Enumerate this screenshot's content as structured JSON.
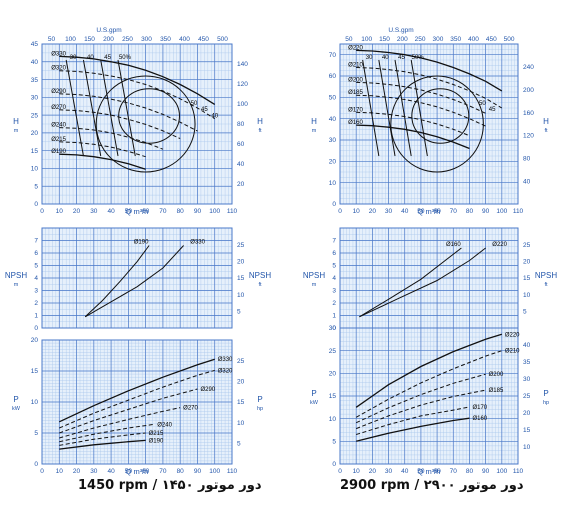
{
  "colors": {
    "grid_bg": "#e6f0fb",
    "grid_major": "#4a78c8",
    "grid_minor": "#a9c6ec",
    "axis_text": "#2255aa",
    "curve": "#111111"
  },
  "captions": {
    "left": "1450 rpm / ۱۴۵۰ دور موتور",
    "right": "2900 rpm / ۲۹۰۰ دور موتور"
  },
  "chart_data": [
    {
      "id": "L_H",
      "type": "line",
      "top_axis_label": "U.S.gpm",
      "top_ticks": [
        "50",
        "100",
        "150",
        "200",
        "250",
        "300",
        "350",
        "400",
        "450",
        "500"
      ],
      "xlabel": "Q m³/h",
      "xlim": [
        0,
        110
      ],
      "xticks": [
        0,
        10,
        20,
        30,
        40,
        50,
        60,
        70,
        80,
        90,
        100,
        110
      ],
      "ylabel": "H m",
      "ylim": [
        0,
        45
      ],
      "yticks": [
        0,
        5,
        10,
        15,
        20,
        25,
        30,
        35,
        40,
        45
      ],
      "ylabel_right": "H ft",
      "yticks_right": [
        "20",
        "40",
        "60",
        "80",
        "100",
        "120",
        "140"
      ],
      "series": [
        {
          "name": "Ø330",
          "style": "solid",
          "x": [
            10,
            20,
            30,
            40,
            50,
            60,
            70,
            80,
            90,
            100
          ],
          "y": [
            41.5,
            41.3,
            40.8,
            40,
            39,
            37.6,
            35.8,
            33.6,
            31,
            28
          ]
        },
        {
          "name": "Ø320",
          "style": "dashed",
          "x": [
            10,
            20,
            30,
            40,
            50,
            60,
            70,
            80,
            90,
            100
          ],
          "y": [
            37.5,
            37.3,
            36.8,
            36,
            35,
            33.6,
            31.8,
            29.6,
            27,
            24
          ]
        },
        {
          "name": "Ø290",
          "style": "dashed",
          "x": [
            10,
            20,
            30,
            40,
            50,
            60,
            70,
            80,
            90
          ],
          "y": [
            31,
            30.8,
            30.3,
            29.5,
            28.4,
            27,
            25.2,
            23,
            20.5
          ]
        },
        {
          "name": "Ø270",
          "style": "dashed",
          "x": [
            10,
            20,
            30,
            40,
            50,
            60,
            70,
            80
          ],
          "y": [
            26.5,
            26.3,
            25.8,
            25,
            23.8,
            22.4,
            20.6,
            18.4
          ]
        },
        {
          "name": "Ø240",
          "style": "dashed",
          "x": [
            10,
            20,
            30,
            40,
            50,
            60,
            70
          ],
          "y": [
            21.5,
            21.3,
            20.8,
            20,
            18.8,
            17.3,
            15.4
          ]
        },
        {
          "name": "Ø215",
          "style": "dashed",
          "x": [
            10,
            20,
            30,
            40,
            50,
            60
          ],
          "y": [
            17.5,
            17.3,
            16.8,
            16,
            14.8,
            13.3
          ]
        },
        {
          "name": "Ø190",
          "style": "solid",
          "x": [
            10,
            20,
            30,
            40,
            50,
            60
          ],
          "y": [
            14,
            13.8,
            13.3,
            12.5,
            11.3,
            9.8
          ]
        }
      ],
      "efficiency_labels": [
        "30",
        "40",
        "45",
        "50%",
        "50",
        "45",
        "40"
      ]
    },
    {
      "id": "L_N",
      "type": "line",
      "xlim": [
        0,
        110
      ],
      "ylim": [
        0,
        8
      ],
      "yticks": [
        0,
        1,
        2,
        3,
        4,
        5,
        6,
        7
      ],
      "ylabel": "NPSH m",
      "ylabel_right": "NPSH ft",
      "yticks_right": [
        "5",
        "10",
        "15",
        "20",
        "25"
      ],
      "series": [
        {
          "name": "Ø190",
          "x": [
            25,
            35,
            45,
            55,
            62
          ],
          "y": [
            0.9,
            2.2,
            3.7,
            5.3,
            6.6
          ]
        },
        {
          "name": "Ø330",
          "x": [
            25,
            40,
            55,
            70,
            82
          ],
          "y": [
            0.9,
            2.1,
            3.3,
            4.8,
            6.6
          ]
        }
      ]
    },
    {
      "id": "L_P",
      "type": "line",
      "xlabel": "Q m³/h",
      "xlim": [
        0,
        110
      ],
      "xticks": [
        0,
        10,
        20,
        30,
        40,
        50,
        60,
        70,
        80,
        90,
        100,
        110
      ],
      "ylim": [
        0,
        20
      ],
      "yticks": [
        0,
        5,
        10,
        15,
        20
      ],
      "ylabel": "P kW",
      "ylabel_right": "P hp",
      "yticks_right": [
        "5",
        "10",
        "15",
        "20",
        "25"
      ],
      "series": [
        {
          "name": "Ø330",
          "style": "solid",
          "x": [
            10,
            30,
            50,
            70,
            90,
            100
          ],
          "y": [
            6.8,
            9.4,
            11.8,
            14,
            16,
            16.9
          ]
        },
        {
          "name": "Ø320",
          "style": "dashed",
          "x": [
            10,
            30,
            50,
            70,
            90,
            100
          ],
          "y": [
            5.8,
            8.2,
            10.3,
            12.4,
            14.3,
            15.1
          ]
        },
        {
          "name": "Ø290",
          "style": "dashed",
          "x": [
            10,
            30,
            50,
            70,
            90
          ],
          "y": [
            5,
            7,
            8.8,
            10.6,
            12.1
          ]
        },
        {
          "name": "Ø270",
          "style": "dashed",
          "x": [
            10,
            30,
            50,
            70,
            80
          ],
          "y": [
            4.2,
            5.8,
            7.2,
            8.5,
            9.1
          ]
        },
        {
          "name": "Ø240",
          "style": "dashed",
          "x": [
            10,
            30,
            50,
            65
          ],
          "y": [
            3.6,
            4.8,
            5.8,
            6.4
          ]
        },
        {
          "name": "Ø215",
          "style": "dashed",
          "x": [
            10,
            30,
            50,
            60
          ],
          "y": [
            3,
            4,
            4.7,
            5
          ]
        },
        {
          "name": "Ø190",
          "style": "solid",
          "x": [
            10,
            30,
            50,
            60
          ],
          "y": [
            2.4,
            3.1,
            3.6,
            3.8
          ]
        }
      ]
    },
    {
      "id": "R_H",
      "type": "line",
      "top_axis_label": "U.S.gpm",
      "top_ticks": [
        "50",
        "100",
        "150",
        "200",
        "250",
        "300",
        "350",
        "400",
        "450",
        "500"
      ],
      "xlabel": "Q m³/h",
      "xlim": [
        0,
        110
      ],
      "xticks": [
        0,
        10,
        20,
        30,
        40,
        50,
        60,
        70,
        80,
        90,
        100,
        110
      ],
      "ylabel": "H m",
      "ylim": [
        0,
        75
      ],
      "yticks": [
        0,
        10,
        20,
        30,
        40,
        50,
        60,
        70
      ],
      "ylabel_right": "H ft",
      "yticks_right": [
        "40",
        "80",
        "120",
        "160",
        "200",
        "240"
      ],
      "series": [
        {
          "name": "Ø220",
          "style": "solid",
          "x": [
            10,
            20,
            30,
            40,
            50,
            60,
            70,
            80,
            90,
            100
          ],
          "y": [
            72,
            71.7,
            71,
            70,
            68.5,
            66.5,
            64,
            61,
            57.5,
            53
          ]
        },
        {
          "name": "Ø210",
          "style": "dashed",
          "x": [
            10,
            20,
            30,
            40,
            50,
            60,
            70,
            80,
            90,
            100
          ],
          "y": [
            64,
            63.7,
            63,
            62,
            60.5,
            58.5,
            56,
            53,
            49.5,
            45
          ]
        },
        {
          "name": "Ø200",
          "style": "dashed",
          "x": [
            10,
            20,
            30,
            40,
            50,
            60,
            70,
            80,
            90
          ],
          "y": [
            57,
            56.7,
            56,
            55,
            53.5,
            51.5,
            49,
            46,
            42.5
          ]
        },
        {
          "name": "Ø185",
          "style": "dashed",
          "x": [
            10,
            20,
            30,
            40,
            50,
            60,
            70,
            80,
            90
          ],
          "y": [
            51,
            50.7,
            50,
            49,
            47.5,
            45.5,
            43,
            40,
            36.5
          ]
        },
        {
          "name": "Ø170",
          "style": "dashed",
          "x": [
            10,
            20,
            30,
            40,
            50,
            60,
            70,
            80
          ],
          "y": [
            43,
            42.7,
            42,
            41,
            39.5,
            37.5,
            35,
            32
          ]
        },
        {
          "name": "Ø160",
          "style": "solid",
          "x": [
            10,
            20,
            30,
            40,
            50,
            60,
            70,
            80
          ],
          "y": [
            37,
            36.7,
            36,
            35,
            33.5,
            31.5,
            29,
            26
          ]
        }
      ],
      "efficiency_labels": [
        "30",
        "40",
        "45",
        "50%",
        "50",
        "45"
      ]
    },
    {
      "id": "R_N",
      "type": "line",
      "xlim": [
        0,
        110
      ],
      "ylim": [
        0,
        8
      ],
      "yticks": [
        0,
        1,
        2,
        3,
        4,
        5,
        6,
        7
      ],
      "ylabel": "NPSH m",
      "ylabel_right": "NPSH ft",
      "yticks_right": [
        "5",
        "10",
        "15",
        "20",
        "25"
      ],
      "series": [
        {
          "name": "Ø160",
          "x": [
            12,
            30,
            50,
            65,
            75
          ],
          "y": [
            0.9,
            2.3,
            3.9,
            5.4,
            6.4
          ]
        },
        {
          "name": "Ø220",
          "x": [
            12,
            35,
            60,
            80,
            90
          ],
          "y": [
            0.9,
            2.3,
            3.8,
            5.4,
            6.4
          ]
        }
      ]
    },
    {
      "id": "R_P",
      "type": "line",
      "xlabel": "Q m³/h",
      "xlim": [
        0,
        110
      ],
      "xticks": [
        0,
        10,
        20,
        30,
        40,
        50,
        60,
        70,
        80,
        90,
        100,
        110
      ],
      "ylim": [
        0,
        30
      ],
      "yticks": [
        0,
        5,
        10,
        15,
        20,
        25,
        30
      ],
      "ylabel": "P kW",
      "ylabel_right": "P hp",
      "yticks_right": [
        "10",
        "15",
        "20",
        "25",
        "30",
        "35",
        "40"
      ],
      "series": [
        {
          "name": "Ø220",
          "style": "solid",
          "x": [
            10,
            30,
            50,
            70,
            90,
            100
          ],
          "y": [
            12.5,
            17.5,
            21.5,
            24.8,
            27.5,
            28.6
          ]
        },
        {
          "name": "Ø210",
          "style": "dashed",
          "x": [
            10,
            30,
            50,
            70,
            90,
            100
          ],
          "y": [
            10.3,
            14.3,
            17.9,
            21,
            23.8,
            25
          ]
        },
        {
          "name": "Ø200",
          "style": "dashed",
          "x": [
            10,
            30,
            50,
            70,
            90
          ],
          "y": [
            9.1,
            12.4,
            15.3,
            17.8,
            19.8
          ]
        },
        {
          "name": "Ø185",
          "style": "dashed",
          "x": [
            10,
            30,
            50,
            70,
            90
          ],
          "y": [
            7.8,
            10.6,
            13,
            14.9,
            16.3
          ]
        },
        {
          "name": "Ø170",
          "style": "dashed",
          "x": [
            10,
            30,
            50,
            70,
            80
          ],
          "y": [
            6.5,
            8.7,
            10.6,
            11.9,
            12.6
          ]
        },
        {
          "name": "Ø160",
          "style": "solid",
          "x": [
            10,
            30,
            50,
            70,
            80
          ],
          "y": [
            5,
            6.8,
            8.3,
            9.6,
            10.1
          ]
        }
      ]
    }
  ]
}
